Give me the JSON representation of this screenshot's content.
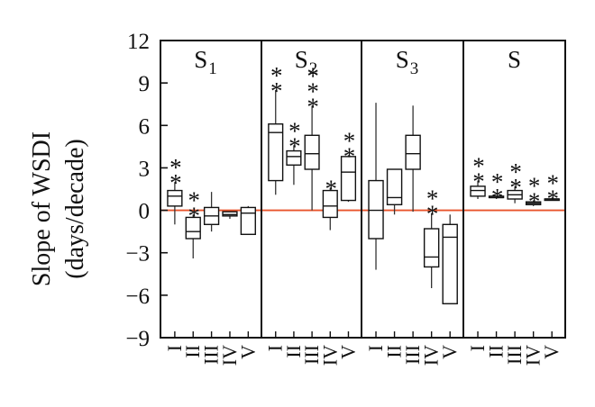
{
  "chart_data": {
    "type": "box",
    "ylabel_line1": "Slope of WSDI",
    "ylabel_line2": "(days/decade)",
    "ylim": [
      -9,
      12
    ],
    "yticks": [
      12,
      9,
      6,
      3,
      0,
      -3,
      -6,
      -9
    ],
    "ytick_labels": [
      "12",
      "9",
      "6",
      "3",
      "0",
      "−3",
      "−6",
      "−9"
    ],
    "categories": [
      "I",
      "II",
      "III",
      "IV",
      "V"
    ],
    "reference_line": {
      "y": 0,
      "color": "#e8542b"
    },
    "panels": [
      {
        "title_main": "S",
        "title_sub": "1",
        "boxes": [
          {
            "cat": "I",
            "whisker_low": -1.0,
            "q1": 0.3,
            "median": 1.0,
            "q3": 1.4,
            "whisker_high": 2.0,
            "significance": "**"
          },
          {
            "cat": "II",
            "whisker_low": -3.4,
            "q1": -2.0,
            "median": -1.5,
            "q3": -0.5,
            "whisker_high": -0.3,
            "significance": "**"
          },
          {
            "cat": "III",
            "whisker_low": -1.5,
            "q1": -1.0,
            "median": -0.4,
            "q3": 0.2,
            "whisker_high": 1.3,
            "significance": ""
          },
          {
            "cat": "IV",
            "whisker_low": -0.6,
            "q1": -0.4,
            "median": -0.3,
            "q3": -0.1,
            "whisker_high": -0.1,
            "significance": ""
          },
          {
            "cat": "V",
            "whisker_low": -1.7,
            "q1": -1.7,
            "median": -0.2,
            "q3": 0.2,
            "whisker_high": 0.3,
            "significance": ""
          }
        ]
      },
      {
        "title_main": "S",
        "title_sub": "2",
        "boxes": [
          {
            "cat": "I",
            "whisker_low": 1.1,
            "q1": 2.1,
            "median": 5.5,
            "q3": 6.1,
            "whisker_high": 8.5,
            "significance": "**"
          },
          {
            "cat": "II",
            "whisker_low": 1.8,
            "q1": 3.2,
            "median": 3.8,
            "q3": 4.2,
            "whisker_high": 4.6,
            "significance": "**"
          },
          {
            "cat": "III",
            "whisker_low": 0.0,
            "q1": 2.9,
            "median": 4.0,
            "q3": 5.3,
            "whisker_high": 7.4,
            "significance": "***"
          },
          {
            "cat": "IV",
            "whisker_low": -1.4,
            "q1": -0.5,
            "median": 0.3,
            "q3": 1.4,
            "whisker_high": 1.6,
            "significance": "*"
          },
          {
            "cat": "V",
            "whisker_low": 0.6,
            "q1": 0.7,
            "median": 2.7,
            "q3": 3.8,
            "whisker_high": 3.9,
            "significance": "**"
          }
        ]
      },
      {
        "title_main": "S",
        "title_sub": "3",
        "boxes": [
          {
            "cat": "I",
            "whisker_low": -4.2,
            "q1": -2.0,
            "median": 0.0,
            "q3": 2.1,
            "whisker_high": 7.6,
            "significance": ""
          },
          {
            "cat": "II",
            "whisker_low": -0.3,
            "q1": 0.4,
            "median": 0.9,
            "q3": 2.9,
            "whisker_high": 2.9,
            "significance": ""
          },
          {
            "cat": "III",
            "whisker_low": -0.1,
            "q1": 2.9,
            "median": 4.0,
            "q3": 5.3,
            "whisker_high": 7.4,
            "significance": ""
          },
          {
            "cat": "IV",
            "whisker_low": -5.5,
            "q1": -4.0,
            "median": -3.3,
            "q3": -1.3,
            "whisker_high": -0.2,
            "significance": "**"
          },
          {
            "cat": "V",
            "whisker_low": -6.6,
            "q1": -6.6,
            "median": -1.9,
            "q3": -1.0,
            "whisker_high": -0.3,
            "significance": ""
          }
        ]
      },
      {
        "title_main": "S",
        "title_sub": "",
        "boxes": [
          {
            "cat": "I",
            "whisker_low": 0.8,
            "q1": 1.0,
            "median": 1.4,
            "q3": 1.7,
            "whisker_high": 2.1,
            "significance": "**"
          },
          {
            "cat": "II",
            "whisker_low": 0.8,
            "q1": 0.9,
            "median": 0.9,
            "q3": 1.0,
            "whisker_high": 1.0,
            "significance": "**"
          },
          {
            "cat": "III",
            "whisker_low": 0.5,
            "q1": 0.8,
            "median": 1.1,
            "q3": 1.4,
            "whisker_high": 1.7,
            "significance": "**"
          },
          {
            "cat": "IV",
            "whisker_low": 0.3,
            "q1": 0.4,
            "median": 0.5,
            "q3": 0.6,
            "whisker_high": 0.7,
            "significance": "**"
          },
          {
            "cat": "V",
            "whisker_low": 0.8,
            "q1": 0.8,
            "median": 0.8,
            "q3": 0.8,
            "whisker_high": 0.9,
            "significance": "**"
          }
        ]
      }
    ]
  }
}
